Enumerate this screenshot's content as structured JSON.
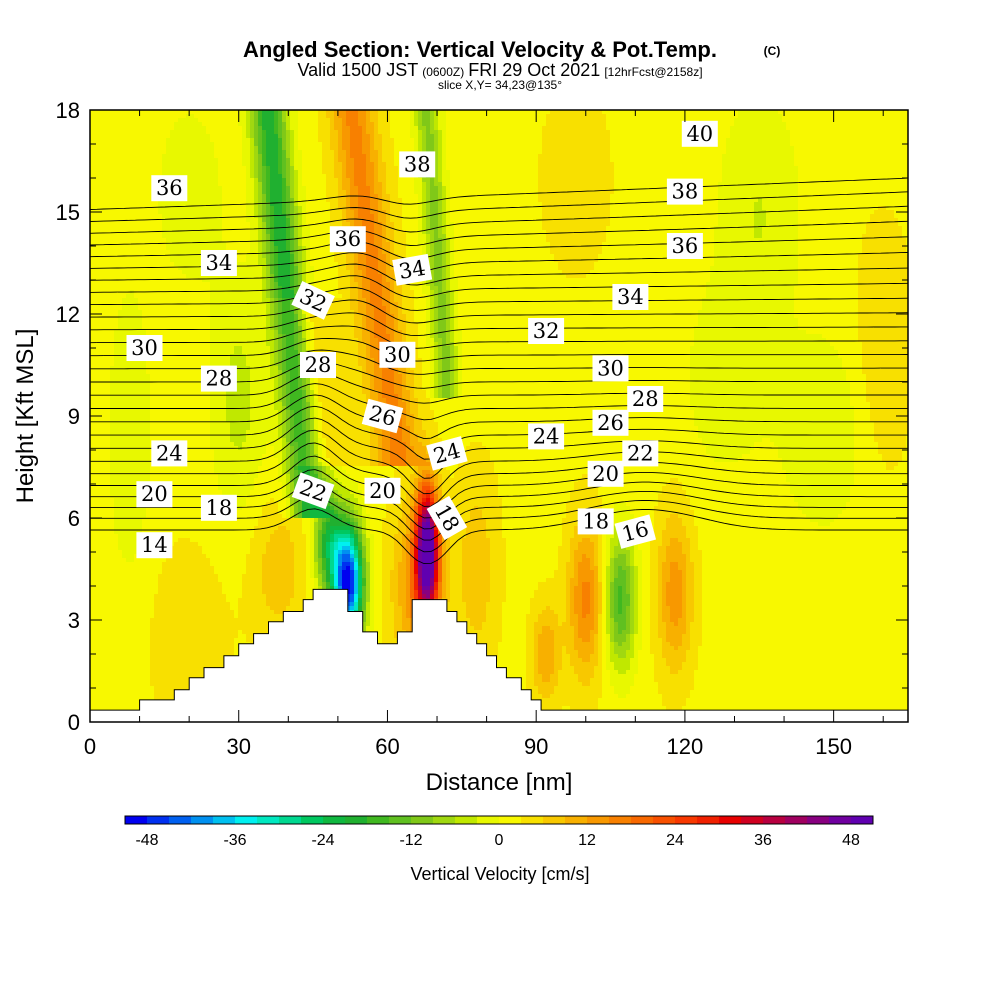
{
  "title": {
    "main": "Angled Section: Vertical Velocity & Pot.Temp.",
    "main_suffix": "(C)",
    "valid_prefix": "Valid 1500 JST",
    "valid_small": "(0600Z)",
    "valid_date": "FRI 29 Oct 2021",
    "valid_fcst": "[12hrFcst@2158z]",
    "slice": "slice X,Y= 34,23@135°"
  },
  "chart_data": {
    "type": "heatmap",
    "xlabel": "Distance [nm]",
    "ylabel": "Height [Kft MSL]",
    "xlim": [
      0,
      165
    ],
    "ylim": [
      0,
      18
    ],
    "xticks": [
      0,
      30,
      60,
      90,
      120,
      150
    ],
    "yticks": [
      0,
      3,
      6,
      9,
      12,
      15,
      18
    ],
    "terrain": [
      [
        0,
        0.35
      ],
      [
        10,
        0.35
      ],
      [
        10,
        0.65
      ],
      [
        17,
        0.65
      ],
      [
        17,
        0.95
      ],
      [
        20,
        0.95
      ],
      [
        20,
        1.3
      ],
      [
        23,
        1.3
      ],
      [
        23,
        1.6
      ],
      [
        27,
        1.6
      ],
      [
        27,
        1.95
      ],
      [
        30,
        1.95
      ],
      [
        30,
        2.3
      ],
      [
        33,
        2.3
      ],
      [
        33,
        2.6
      ],
      [
        36,
        2.6
      ],
      [
        36,
        2.95
      ],
      [
        39,
        2.95
      ],
      [
        39,
        3.25
      ],
      [
        43,
        3.25
      ],
      [
        43,
        3.6
      ],
      [
        45,
        3.6
      ],
      [
        45,
        3.9
      ],
      [
        52,
        3.9
      ],
      [
        52,
        3.25
      ],
      [
        55,
        3.25
      ],
      [
        55,
        2.65
      ],
      [
        58,
        2.65
      ],
      [
        58,
        2.3
      ],
      [
        62,
        2.3
      ],
      [
        62,
        2.65
      ],
      [
        65,
        2.65
      ],
      [
        65,
        3.6
      ],
      [
        72,
        3.6
      ],
      [
        72,
        3.25
      ],
      [
        74,
        3.25
      ],
      [
        74,
        2.95
      ],
      [
        76,
        2.95
      ],
      [
        76,
        2.6
      ],
      [
        78,
        2.6
      ],
      [
        78,
        2.3
      ],
      [
        80,
        2.3
      ],
      [
        80,
        1.95
      ],
      [
        82,
        1.95
      ],
      [
        82,
        1.6
      ],
      [
        84,
        1.6
      ],
      [
        84,
        1.3
      ],
      [
        87,
        1.3
      ],
      [
        87,
        0.95
      ],
      [
        89,
        0.95
      ],
      [
        89,
        0.65
      ],
      [
        91,
        0.65
      ],
      [
        91,
        0.35
      ],
      [
        165,
        0.35
      ]
    ],
    "theta_contours": {
      "units": "C",
      "levels": [
        14,
        15,
        16,
        17,
        18,
        19,
        20,
        21,
        22,
        23,
        24,
        25,
        26,
        27,
        28,
        29,
        30,
        31,
        32,
        33,
        34,
        35,
        36,
        37,
        38,
        39,
        40
      ],
      "labels": [
        {
          "x": 13,
          "y": 5.2,
          "text": "14",
          "angle": 0
        },
        {
          "x": 13,
          "y": 6.7,
          "text": "20",
          "angle": 0
        },
        {
          "x": 16,
          "y": 7.9,
          "text": "24",
          "angle": 0
        },
        {
          "x": 26,
          "y": 6.3,
          "text": "18",
          "angle": 0
        },
        {
          "x": 26,
          "y": 10.1,
          "text": "28",
          "angle": 0
        },
        {
          "x": 11,
          "y": 11.0,
          "text": "30",
          "angle": 0
        },
        {
          "x": 26,
          "y": 13.5,
          "text": "34",
          "angle": 0
        },
        {
          "x": 16,
          "y": 15.7,
          "text": "36",
          "angle": 0
        },
        {
          "x": 45,
          "y": 6.8,
          "text": "22",
          "angle": 20
        },
        {
          "x": 46,
          "y": 10.5,
          "text": "28",
          "angle": 0
        },
        {
          "x": 45,
          "y": 12.4,
          "text": "32",
          "angle": 25
        },
        {
          "x": 52,
          "y": 14.2,
          "text": "36",
          "angle": 0
        },
        {
          "x": 59,
          "y": 6.8,
          "text": "20",
          "angle": 0
        },
        {
          "x": 59,
          "y": 9.0,
          "text": "26",
          "angle": 15
        },
        {
          "x": 62,
          "y": 10.8,
          "text": "30",
          "angle": 0
        },
        {
          "x": 65,
          "y": 13.3,
          "text": "34",
          "angle": -10
        },
        {
          "x": 66,
          "y": 16.4,
          "text": "38",
          "angle": 0
        },
        {
          "x": 72,
          "y": 6.0,
          "text": "18",
          "angle": 60
        },
        {
          "x": 72,
          "y": 7.9,
          "text": "24",
          "angle": -15
        },
        {
          "x": 92,
          "y": 11.5,
          "text": "32",
          "angle": 0
        },
        {
          "x": 92,
          "y": 8.4,
          "text": "24",
          "angle": 0
        },
        {
          "x": 102,
          "y": 5.9,
          "text": "18",
          "angle": 0
        },
        {
          "x": 104,
          "y": 7.3,
          "text": "20",
          "angle": 0
        },
        {
          "x": 105,
          "y": 8.8,
          "text": "26",
          "angle": 0
        },
        {
          "x": 105,
          "y": 10.4,
          "text": "30",
          "angle": 0
        },
        {
          "x": 110,
          "y": 5.6,
          "text": "16",
          "angle": -15
        },
        {
          "x": 111,
          "y": 7.9,
          "text": "22",
          "angle": 0
        },
        {
          "x": 112,
          "y": 9.5,
          "text": "28",
          "angle": 0
        },
        {
          "x": 109,
          "y": 12.5,
          "text": "34",
          "angle": 0
        },
        {
          "x": 120,
          "y": 14.0,
          "text": "36",
          "angle": 0
        },
        {
          "x": 120,
          "y": 15.6,
          "text": "38",
          "angle": 0
        },
        {
          "x": 123,
          "y": 17.3,
          "text": "40",
          "angle": 0
        }
      ]
    },
    "vertical_velocity": {
      "units": "cm/s",
      "features": [
        {
          "kind": "downdraft",
          "x": 52,
          "y": 4.1,
          "peak": -50
        },
        {
          "kind": "updraft",
          "x": 68,
          "y": 5.0,
          "peak": 48
        },
        {
          "kind": "downdraft-band",
          "from": [
            44,
            6.5
          ],
          "to": [
            36,
            17.8
          ],
          "peak": -24
        },
        {
          "kind": "updraft-band",
          "from": [
            62,
            8.0
          ],
          "to": [
            53,
            17.8
          ],
          "peak": 14
        },
        {
          "kind": "downdraft-band",
          "from": [
            72,
            10.0
          ],
          "to": [
            68,
            17.8
          ],
          "peak": -12
        },
        {
          "kind": "downdraft",
          "x": 107,
          "y": 3.6,
          "peak": -18
        },
        {
          "kind": "updraft",
          "x": 100,
          "y": 3.6,
          "peak": 14
        },
        {
          "kind": "updraft",
          "x": 118,
          "y": 3.8,
          "peak": 12
        }
      ]
    },
    "colorbar": {
      "title": "Vertical Velocity [cm/s]",
      "ticks": [
        -48,
        -36,
        -24,
        -12,
        0,
        12,
        24,
        36,
        48
      ],
      "boundaries": [
        -51,
        -48,
        -45,
        -42,
        -39,
        -36,
        -33,
        -30,
        -27,
        -24,
        -21,
        -18,
        -15,
        -12,
        -9,
        -6,
        -3,
        0,
        3,
        6,
        9,
        12,
        15,
        18,
        21,
        24,
        27,
        30,
        33,
        36,
        39,
        42,
        45,
        48,
        51
      ],
      "colors": [
        "#0000f0",
        "#0030f0",
        "#0060f0",
        "#0090f0",
        "#00c0f0",
        "#00f0f0",
        "#00e8c0",
        "#00d890",
        "#00c860",
        "#10b840",
        "#20b030",
        "#40b820",
        "#60c020",
        "#80c818",
        "#a0d810",
        "#c0e800",
        "#e8f800",
        "#f8f800",
        "#f8e000",
        "#f8c800",
        "#f8b000",
        "#f89800",
        "#f88000",
        "#f86800",
        "#f85000",
        "#f83800",
        "#f02000",
        "#e80000",
        "#d00020",
        "#b80040",
        "#a00060",
        "#880080",
        "#7000a0",
        "#6000b0"
      ]
    }
  }
}
